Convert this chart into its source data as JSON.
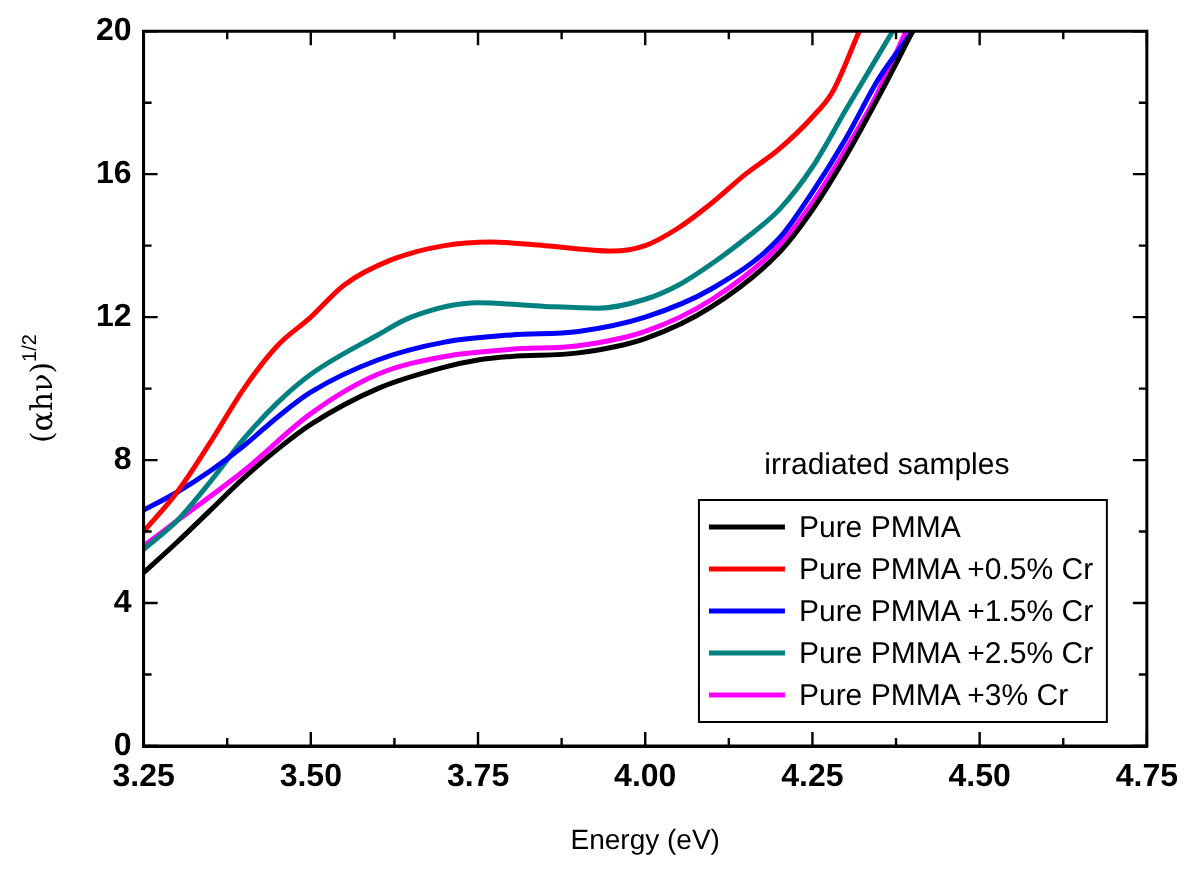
{
  "chart_data": {
    "type": "line",
    "xlabel": "Energy (eV)",
    "ylabel": "(αhν)$^{1/2}$",
    "legend_title": "irradiated samples",
    "legend": "bottom right",
    "marker": "none",
    "line_style": "solid",
    "grid": false,
    "xlim": [
      3.25,
      4.75
    ],
    "xticks": [
      {
        "value": 3.25,
        "label": "3.25"
      },
      {
        "value": 3.5,
        "label": "3.50"
      },
      {
        "value": 3.75,
        "label": "3.75"
      },
      {
        "value": 4,
        "label": "4.00"
      },
      {
        "value": 4.25,
        "label": "4.25"
      },
      {
        "value": 4.5,
        "label": "4.50"
      },
      {
        "value": 4.75,
        "label": "4.75"
      }
    ],
    "ylim": [
      0,
      20
    ],
    "yticks": [
      0,
      4,
      8,
      12,
      16,
      20
    ],
    "series": [
      {
        "name": "Pure PMMA",
        "color": "#000000",
        "x": [
          3.25,
          3.3,
          3.35,
          3.4,
          3.45,
          3.5,
          3.6,
          3.7,
          3.75,
          3.8,
          3.9,
          4.0,
          4.1,
          4.2,
          4.25,
          4.3,
          4.35,
          4.4
        ],
        "values": [
          4.85,
          5.7,
          6.6,
          7.5,
          8.3,
          9.0,
          10.0,
          10.6,
          10.8,
          10.9,
          11.0,
          11.4,
          12.3,
          13.8,
          15.0,
          16.5,
          18.2,
          20
        ]
      },
      {
        "name": "Pure PMMA +0.5% Cr",
        "color": "#ff0000",
        "x": [
          3.25,
          3.3,
          3.35,
          3.4,
          3.45,
          3.5,
          3.55,
          3.62,
          3.7,
          3.77,
          3.85,
          3.95,
          4.0,
          4.05,
          4.1,
          4.15,
          4.2,
          4.25,
          4.28,
          4.32
        ],
        "values": [
          6.0,
          7.1,
          8.5,
          10.0,
          11.2,
          12.0,
          12.9,
          13.6,
          14.0,
          14.1,
          14.0,
          13.85,
          14.0,
          14.5,
          15.2,
          16.0,
          16.7,
          17.6,
          18.3,
          20
        ]
      },
      {
        "name": "Pure PMMA +1.5% Cr",
        "color": "#0000ff",
        "x": [
          3.25,
          3.3,
          3.35,
          3.4,
          3.45,
          3.5,
          3.6,
          3.7,
          3.8,
          3.9,
          4.0,
          4.1,
          4.2,
          4.25,
          4.3,
          4.35,
          4.4
        ],
        "values": [
          6.6,
          7.1,
          7.7,
          8.4,
          9.2,
          9.9,
          10.8,
          11.3,
          11.5,
          11.6,
          12.0,
          12.8,
          14.2,
          15.5,
          17.0,
          18.7,
          20
        ]
      },
      {
        "name": "Pure PMMA +2.5% Cr",
        "color": "#008080",
        "x": [
          3.25,
          3.3,
          3.35,
          3.4,
          3.45,
          3.5,
          3.6,
          3.65,
          3.75,
          3.85,
          3.93,
          4.0,
          4.05,
          4.1,
          4.15,
          4.2,
          4.25,
          4.3,
          4.37
        ],
        "values": [
          5.5,
          6.3,
          7.4,
          8.6,
          9.6,
          10.4,
          11.5,
          12.0,
          12.4,
          12.3,
          12.25,
          12.5,
          12.9,
          13.5,
          14.2,
          15.0,
          16.2,
          17.8,
          20
        ]
      },
      {
        "name": "Pure PMMA +3% Cr",
        "color": "#ff00ff",
        "x": [
          3.25,
          3.3,
          3.4,
          3.5,
          3.6,
          3.7,
          3.8,
          3.9,
          4.0,
          4.1,
          4.2,
          4.25,
          4.3,
          4.34,
          4.39
        ],
        "values": [
          5.6,
          6.3,
          7.7,
          9.3,
          10.4,
          10.9,
          11.1,
          11.2,
          11.6,
          12.5,
          14.0,
          15.2,
          16.7,
          18.0,
          20
        ]
      }
    ]
  }
}
